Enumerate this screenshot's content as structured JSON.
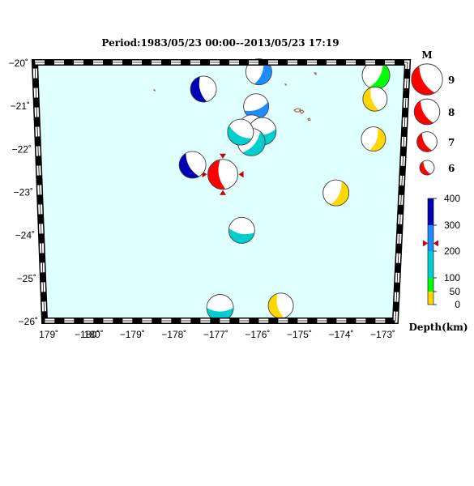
{
  "title": "Period:1983/05/23 00:00--2013/05/23 17:19",
  "map": {
    "lat_range": [
      -26,
      -20
    ],
    "lon_range_deg_east": [
      178.9,
      187.3
    ],
    "ocean_color": "#e0ffff",
    "lat_labels": [
      "−20˚",
      "−21˚",
      "−22˚",
      "−23˚",
      "−24˚",
      "−25˚",
      "−26˚"
    ],
    "lat_values": [
      -20,
      -21,
      -22,
      -23,
      -24,
      -25,
      -26
    ],
    "lon_labels": [
      "179˚",
      "−180˚",
      "180˚",
      "−179˚",
      "−178˚",
      "−177˚",
      "−176˚",
      "−175˚",
      "−174˚",
      "−173˚"
    ],
    "lon_values": [
      179,
      180,
      180,
      181,
      182,
      183,
      184,
      185,
      186,
      187
    ]
  },
  "events": [
    {
      "lon": 183.15,
      "lat": -22.6,
      "mag": 7.0,
      "color": "#ff0000",
      "depth_band": "highlighted",
      "strike": 170,
      "highlighted": true
    },
    {
      "lon": 182.45,
      "lat": -22.38,
      "mag": 6.2,
      "color": "#0000b4",
      "depth_band": "300-400",
      "strike": 150
    },
    {
      "lon": 182.7,
      "lat": -20.62,
      "mag": 6.0,
      "color": "#0000b4",
      "depth_band": "300-400",
      "strike": 165
    },
    {
      "lon": 183.95,
      "lat": -20.22,
      "mag": 6.0,
      "color": "#1e8cff",
      "depth_band": "200-300",
      "strike": 20
    },
    {
      "lon": 183.9,
      "lat": -21.02,
      "mag": 5.8,
      "color": "#1e8cff",
      "depth_band": "200-300",
      "strike": 70
    },
    {
      "lon": 183.8,
      "lat": -21.52,
      "mag": 6.0,
      "color": "#00cdcd",
      "depth_band": "100-200",
      "strike": 130
    },
    {
      "lon": 184.05,
      "lat": -21.6,
      "mag": 6.4,
      "color": "#00cdcd",
      "depth_band": "100-200",
      "strike": 80
    },
    {
      "lon": 183.8,
      "lat": -21.85,
      "mag": 6.4,
      "color": "#00cdcd",
      "depth_band": "100-200",
      "strike": 40
    },
    {
      "lon": 183.55,
      "lat": -21.62,
      "mag": 6.0,
      "color": "#00cdcd",
      "depth_band": "100-200",
      "strike": 120
    },
    {
      "lon": 183.6,
      "lat": -23.9,
      "mag": 6.0,
      "color": "#00cdcd",
      "depth_band": "100-200",
      "strike": 100
    },
    {
      "lon": 183.1,
      "lat": -25.7,
      "mag": 6.2,
      "color": "#00cdcd",
      "depth_band": "100-200",
      "strike": 90
    },
    {
      "lon": 186.6,
      "lat": -20.3,
      "mag": 6.4,
      "color": "#00ff00",
      "depth_band": "50-100",
      "strike": 30
    },
    {
      "lon": 186.6,
      "lat": -20.85,
      "mag": 5.6,
      "color": "#ffd700",
      "depth_band": "0-50",
      "strike": 160
    },
    {
      "lon": 186.6,
      "lat": -21.78,
      "mag": 5.6,
      "color": "#ffd700",
      "depth_band": "0-50",
      "strike": 20
    },
    {
      "lon": 185.78,
      "lat": -23.03,
      "mag": 6.0,
      "color": "#ffd700",
      "depth_band": "0-50",
      "strike": 25
    },
    {
      "lon": 184.55,
      "lat": -25.65,
      "mag": 5.8,
      "color": "#ffd700",
      "depth_band": "0-50",
      "strike": 165
    }
  ],
  "legend": {
    "magnitude_title": "M",
    "magnitudes": [
      {
        "value": 9,
        "label": "9"
      },
      {
        "value": 8,
        "label": "8"
      },
      {
        "value": 7,
        "label": "7"
      },
      {
        "value": 6,
        "label": "6"
      }
    ],
    "mag_symbol_color": "#ff0000",
    "depth_title": "Depth(km)",
    "depth_bands": [
      {
        "from": 0,
        "to": 50,
        "color": "#ffd700"
      },
      {
        "from": 50,
        "to": 100,
        "color": "#00ff00"
      },
      {
        "from": 100,
        "to": 200,
        "color": "#00cdcd"
      },
      {
        "from": 200,
        "to": 300,
        "color": "#1e8cff"
      },
      {
        "from": 300,
        "to": 400,
        "color": "#0000b4"
      }
    ],
    "depth_tick_labels": [
      "0",
      "50",
      "100",
      "200",
      "300",
      "400"
    ],
    "depth_tick_values": [
      0,
      50,
      100,
      200,
      300,
      400
    ],
    "highlight_depth_km": 230,
    "highlight_marker_color": "#c80000"
  }
}
